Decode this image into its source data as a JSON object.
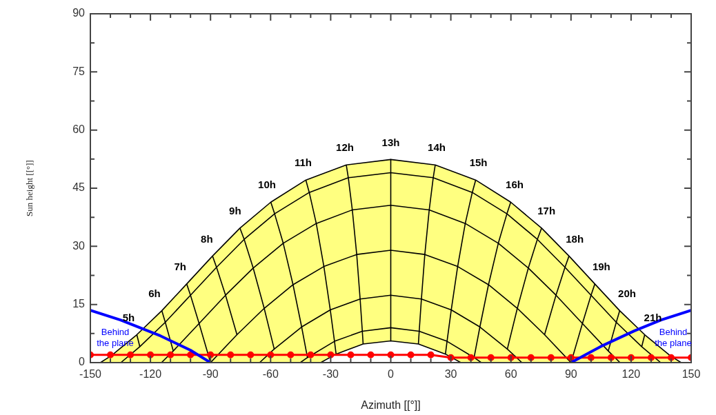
{
  "chart_data": {
    "type": "line",
    "xlabel": "Azimuth [[°]]",
    "ylabel": "Sun height [[°]]",
    "xlim": [
      -150,
      150
    ],
    "xticks": [
      -150,
      {
        "value": -140,
        "label": null
      },
      {
        "value": -130,
        "label": null
      },
      -120,
      {
        "value": -110,
        "label": null
      },
      {
        "value": -100,
        "label": null
      },
      -90,
      {
        "value": -80,
        "label": null
      },
      {
        "value": -70,
        "label": null
      },
      -60,
      {
        "value": -50,
        "label": null
      },
      {
        "value": -40,
        "label": null
      },
      -30,
      {
        "value": -20,
        "label": null
      },
      {
        "value": -10,
        "label": null
      },
      0,
      {
        "value": 10,
        "label": null
      },
      {
        "value": 20,
        "label": null
      },
      30,
      {
        "value": 40,
        "label": null
      },
      {
        "value": 50,
        "label": null
      },
      60,
      {
        "value": 70,
        "label": null
      },
      {
        "value": 80,
        "label": null
      },
      90,
      {
        "value": 100,
        "label": null
      },
      {
        "value": 110,
        "label": null
      },
      120,
      {
        "value": 130,
        "label": null
      },
      {
        "value": 140,
        "label": null
      },
      150
    ],
    "ylim": [
      0,
      90
    ],
    "yticks": [
      0,
      {
        "value": 7.5,
        "label": null
      },
      15,
      {
        "value": 22.5,
        "label": null
      },
      30,
      {
        "value": 37.5,
        "label": null
      },
      45,
      {
        "value": 52.5,
        "label": null
      },
      60,
      {
        "value": 67.5,
        "label": null
      },
      75,
      {
        "value": 82.5,
        "label": null
      },
      90
    ],
    "legend": false,
    "series": [
      {
        "name": "Behind the plane",
        "color": "#0000ff",
        "x": [
          -150,
          -135,
          -115,
          -100,
          -90
        ],
        "values": [
          13.5,
          11.0,
          6.9,
          3.2,
          0
        ]
      },
      {
        "name": "Behind the plane",
        "color": "#0000ff",
        "x": [
          90,
          105,
          121.7,
          135,
          150
        ],
        "values": [
          0,
          4.2,
          8.2,
          11.0,
          13.5
        ]
      },
      {
        "color": "#ff0000",
        "marker": "circle",
        "x": [
          -150,
          -140,
          -130,
          -120,
          -110,
          -100,
          -90,
          -80,
          -70,
          -60,
          -50,
          -40,
          -30,
          -20,
          -10,
          0,
          10,
          20,
          30,
          40,
          50,
          60,
          70,
          80,
          90,
          100,
          110,
          120,
          130,
          140,
          150
        ],
        "values": [
          2.0,
          2.0,
          2.0,
          2.0,
          2.0,
          2.0,
          2.0,
          2.0,
          2.0,
          2.0,
          2.0,
          2.0,
          2.0,
          2.0,
          2.0,
          2.0,
          2.0,
          2.0,
          1.3,
          1.3,
          1.3,
          1.3,
          1.3,
          1.3,
          1.3,
          1.3,
          1.3,
          1.3,
          1.3,
          1.3,
          1.3
        ]
      },
      {
        "color": "#000000",
        "x": [
          -134.8,
          -125.3,
          -112.6,
          -100.0,
          -87.0,
          -73.2,
          -58.0,
          -40.7,
          -21.2,
          0,
          21.2,
          40.7,
          58.0,
          73.2,
          87.0,
          100.0,
          112.6,
          125.3,
          134.8
        ],
        "values": [
          0,
          4.1,
          10.4,
          17.4,
          24.6,
          31.8,
          38.4,
          43.9,
          47.7,
          49.0,
          47.7,
          43.9,
          38.4,
          31.8,
          24.6,
          17.4,
          10.4,
          4.1,
          0
        ]
      },
      {
        "color": "#000000",
        "x": [
          -114.5,
          -108.6,
          -95.7,
          -82.5,
          -68.7,
          -53.7,
          -37.2,
          -19.2,
          0,
          19.2,
          37.2,
          53.7,
          68.7,
          82.5,
          95.7,
          108.6,
          114.5
        ],
        "values": [
          0,
          3.0,
          10.1,
          17.4,
          24.4,
          30.8,
          35.9,
          39.4,
          40.6,
          39.4,
          35.9,
          30.8,
          24.4,
          17.4,
          10.1,
          3.0,
          0
        ]
      },
      {
        "color": "#000000",
        "x": [
          -90,
          -76.8,
          -63.2,
          -48.8,
          -33.4,
          -17.0,
          0,
          17.0,
          33.4,
          48.8,
          63.2,
          76.8,
          90
        ],
        "values": [
          0,
          7.2,
          14.0,
          20.1,
          24.8,
          27.9,
          29.0,
          27.9,
          24.8,
          20.1,
          14.0,
          7.2,
          0
        ]
      },
      {
        "color": "#000000",
        "x": [
          -65.5,
          -58.2,
          -44.5,
          -30.2,
          -15.3,
          0,
          15.3,
          30.2,
          44.5,
          58.2,
          65.5
        ],
        "values": [
          0,
          3.5,
          9.2,
          13.6,
          16.4,
          17.4,
          16.4,
          13.6,
          9.2,
          3.5,
          0
        ]
      },
      {
        "color": "#000000",
        "x": [
          -45.2,
          -41.6,
          -28.1,
          -14.2,
          0,
          14.2,
          28.1,
          41.6,
          45.2
        ],
        "values": [
          0,
          1.3,
          5.5,
          8.1,
          9.0,
          8.1,
          5.5,
          1.3,
          0
        ]
      },
      {
        "name": "5h",
        "color": "#000000",
        "x": [
          -126.8,
          -125.3
        ],
        "values": [
          7.2,
          4.1
        ]
      },
      {
        "name": "6h",
        "color": "#000000",
        "x": [
          -114.3,
          -112.6,
          -108.6
        ],
        "values": [
          13.4,
          10.4,
          3.0
        ]
      },
      {
        "name": "7h",
        "color": "#000000",
        "x": [
          -101.9,
          -100.0,
          -95.7,
          -90
        ],
        "values": [
          20.3,
          17.4,
          10.1,
          0
        ]
      },
      {
        "name": "8h",
        "color": "#000000",
        "x": [
          -89.0,
          -87.0,
          -82.5,
          -76.8
        ],
        "values": [
          27.5,
          24.6,
          17.4,
          7.2
        ]
      },
      {
        "name": "9h",
        "color": "#000000",
        "x": [
          -75.3,
          -73.2,
          -68.7,
          -63.2,
          -58.2
        ],
        "values": [
          34.7,
          31.8,
          24.4,
          14.0,
          3.5
        ]
      },
      {
        "name": "10h",
        "color": "#000000",
        "x": [
          -59.9,
          -58.0,
          -53.7,
          -48.8,
          -44.5,
          -41.6
        ],
        "values": [
          41.4,
          38.4,
          30.8,
          20.1,
          9.2,
          1.3
        ]
      },
      {
        "name": "11h",
        "color": "#000000",
        "x": [
          -42.4,
          -40.7,
          -37.2,
          -33.4,
          -30.2,
          -28.1,
          -27.3
        ],
        "values": [
          47.1,
          43.9,
          35.9,
          24.8,
          13.6,
          5.5,
          2.2
        ]
      },
      {
        "name": "12h",
        "color": "#000000",
        "x": [
          -22.2,
          -21.2,
          -19.2,
          -17.0,
          -15.3,
          -14.2,
          -13.8
        ],
        "values": [
          51.0,
          47.7,
          39.4,
          27.9,
          16.4,
          8.1,
          4.8
        ]
      },
      {
        "name": "13h",
        "color": "#000000",
        "x": [
          0,
          0,
          0,
          0,
          0,
          0,
          0
        ],
        "values": [
          52.4,
          49.0,
          40.6,
          29.0,
          17.4,
          9.0,
          5.6
        ]
      },
      {
        "name": "14h",
        "color": "#000000",
        "x": [
          22.2,
          21.2,
          19.2,
          17.0,
          15.3,
          14.2,
          13.8
        ],
        "values": [
          51.0,
          47.7,
          39.4,
          27.9,
          16.4,
          8.1,
          4.8
        ]
      },
      {
        "name": "15h",
        "color": "#000000",
        "x": [
          42.4,
          40.7,
          37.2,
          33.4,
          30.2,
          28.1,
          27.3
        ],
        "values": [
          47.1,
          43.9,
          35.9,
          24.8,
          13.6,
          5.5,
          2.2
        ]
      },
      {
        "name": "16h",
        "color": "#000000",
        "x": [
          59.9,
          58.0,
          53.7,
          48.8,
          44.5,
          41.6
        ],
        "values": [
          41.4,
          38.4,
          30.8,
          20.1,
          9.2,
          1.3
        ]
      },
      {
        "name": "17h",
        "color": "#000000",
        "x": [
          75.3,
          73.2,
          68.7,
          63.2,
          58.2
        ],
        "values": [
          34.7,
          31.8,
          24.4,
          14.0,
          3.5
        ]
      },
      {
        "name": "18h",
        "color": "#000000",
        "x": [
          89.0,
          87.0,
          82.5,
          76.8
        ],
        "values": [
          27.5,
          24.6,
          17.4,
          7.2
        ]
      },
      {
        "name": "19h",
        "color": "#000000",
        "x": [
          101.9,
          100.0,
          95.7,
          90
        ],
        "values": [
          20.3,
          17.4,
          10.1,
          0
        ]
      },
      {
        "name": "20h",
        "color": "#000000",
        "x": [
          114.3,
          112.6,
          108.6
        ],
        "values": [
          13.4,
          10.4,
          3.0
        ]
      },
      {
        "name": "21h",
        "color": "#000000",
        "x": [
          126.8,
          125.3
        ],
        "values": [
          7.2,
          4.1
        ]
      },
      {
        "type": "area",
        "color": "#ffff80",
        "x": [
          -145,
          -139.5,
          -126.8,
          -114.3,
          -101.9,
          -89.0,
          -75.3,
          -59.9,
          -42.4,
          -22.2,
          0,
          22.2,
          42.4,
          59.9,
          75.3,
          89.0,
          101.9,
          114.3,
          126.8,
          139.5,
          145,
          35.0,
          27.3,
          13.8,
          0,
          -13.8,
          -27.3,
          -35.0
        ],
        "values": [
          0,
          1.8,
          7.2,
          13.4,
          20.3,
          27.5,
          34.7,
          41.4,
          47.1,
          51.0,
          52.4,
          51.0,
          47.1,
          41.4,
          34.7,
          27.5,
          20.3,
          13.4,
          7.2,
          1.8,
          0,
          0,
          2.2,
          4.8,
          5.6,
          4.8,
          2.2,
          0
        ]
      }
    ]
  }
}
